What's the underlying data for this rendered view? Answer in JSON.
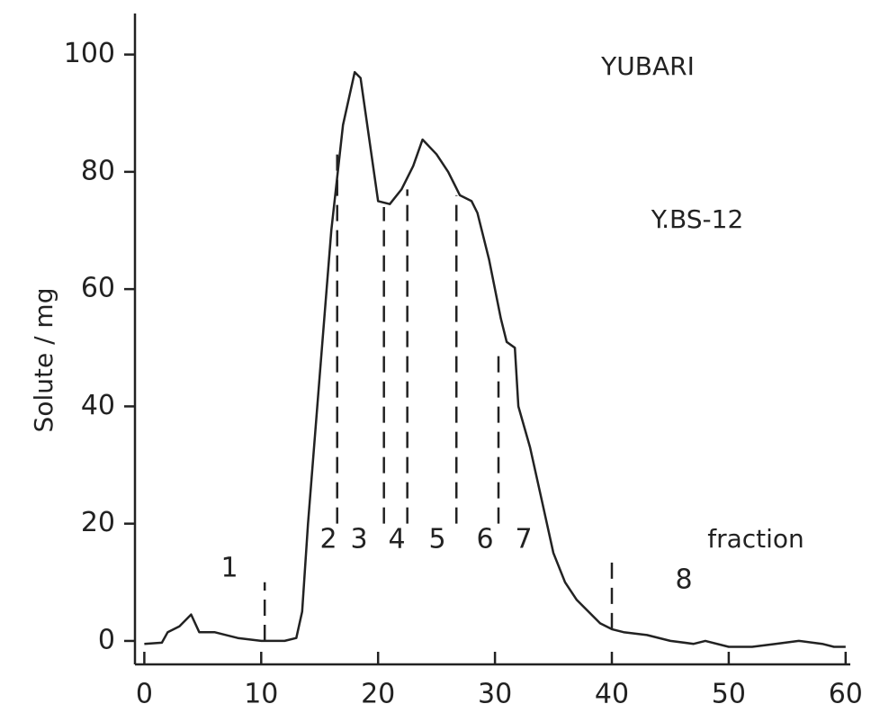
{
  "chart_data": {
    "type": "line",
    "y_label": "Solute / mg",
    "annotations": [
      "YUBARI",
      "Y.BS-12",
      "fraction"
    ],
    "fraction_labels": [
      "1",
      "2",
      "3",
      "4",
      "5",
      "6",
      "7",
      "8"
    ],
    "x": [
      0,
      1.5,
      2,
      3,
      4,
      4.7,
      6,
      8,
      10,
      12,
      13,
      13.5,
      14,
      15,
      16,
      17,
      18,
      18.5,
      19.5,
      20,
      21,
      22,
      23,
      23.8,
      25,
      26,
      27,
      28,
      28.5,
      29.5,
      30.5,
      31,
      31.7,
      32,
      33,
      34,
      35,
      36,
      37,
      38,
      39,
      40,
      41,
      43,
      45,
      47,
      48,
      50,
      52,
      54,
      56,
      58,
      59,
      60
    ],
    "series": [
      {
        "name": "Solute",
        "color": "#222222",
        "values": [
          -0.5,
          -0.3,
          1.5,
          2.5,
          4.5,
          1.5,
          1.5,
          0.5,
          0,
          0,
          0.5,
          5,
          20,
          45,
          70,
          88,
          97,
          96,
          82,
          75,
          74.5,
          77,
          81,
          85.5,
          83,
          80,
          76,
          75,
          73,
          65,
          55,
          51,
          50,
          40,
          33,
          24,
          15,
          10,
          7,
          5,
          3,
          2,
          1.5,
          1,
          0,
          -0.5,
          0,
          -1,
          -1,
          -0.5,
          0,
          -0.5,
          -1,
          -1
        ]
      }
    ],
    "boundaries": [
      {
        "x": 10.3,
        "y": [
          0,
          10
        ]
      },
      {
        "x": 16.5,
        "y": [
          20,
          83
        ]
      },
      {
        "x": 20.5,
        "y": [
          20,
          74
        ]
      },
      {
        "x": 22.5,
        "y": [
          20,
          77
        ]
      },
      {
        "x": 26.7,
        "y": [
          20,
          76
        ]
      },
      {
        "x": 30.3,
        "y": [
          20,
          50
        ]
      },
      {
        "x": 40,
        "y": [
          2,
          14
        ]
      }
    ],
    "xlim": [
      -0.8,
      60.4
    ],
    "xticks": [
      0,
      10,
      20,
      30,
      40,
      50,
      60
    ],
    "ylim": [
      -4,
      107
    ],
    "yticks": [
      0,
      20,
      40,
      60,
      80,
      100
    ]
  }
}
